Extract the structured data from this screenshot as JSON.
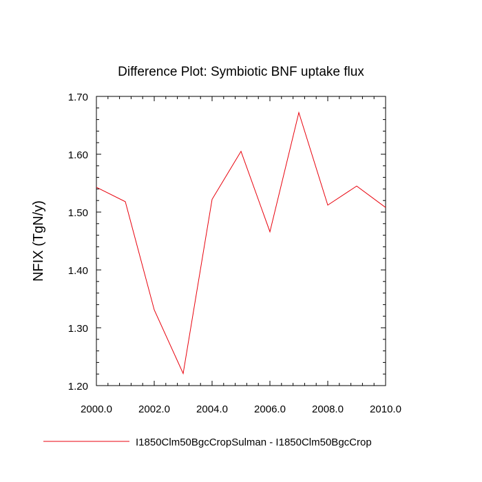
{
  "colors": {
    "series": "#e8000b",
    "axis": "#000000",
    "background": "#ffffff"
  },
  "chart_data": {
    "type": "line",
    "title": "Difference Plot: Symbiotic BNF uptake flux",
    "xlabel": "",
    "ylabel": "NFIX  (TgN/y)",
    "xlim": [
      2000,
      2010
    ],
    "ylim": [
      1.2,
      1.7
    ],
    "x_ticks": [
      "2000.0",
      "2002.0",
      "2004.0",
      "2006.0",
      "2008.0",
      "2010.0"
    ],
    "y_ticks": [
      "1.20",
      "1.30",
      "1.40",
      "1.50",
      "1.60",
      "1.70"
    ],
    "grid": false,
    "legend_position": "bottom",
    "x": [
      2000,
      2001,
      2002,
      2003,
      2004,
      2005,
      2006,
      2007,
      2008,
      2009,
      2010
    ],
    "series": [
      {
        "name": "I1850Clm50BgcCropSulman - I1850Clm50BgcCrop",
        "values": [
          1.543,
          1.518,
          1.331,
          1.221,
          1.522,
          1.605,
          1.466,
          1.672,
          1.512,
          1.545,
          1.508
        ]
      }
    ]
  }
}
